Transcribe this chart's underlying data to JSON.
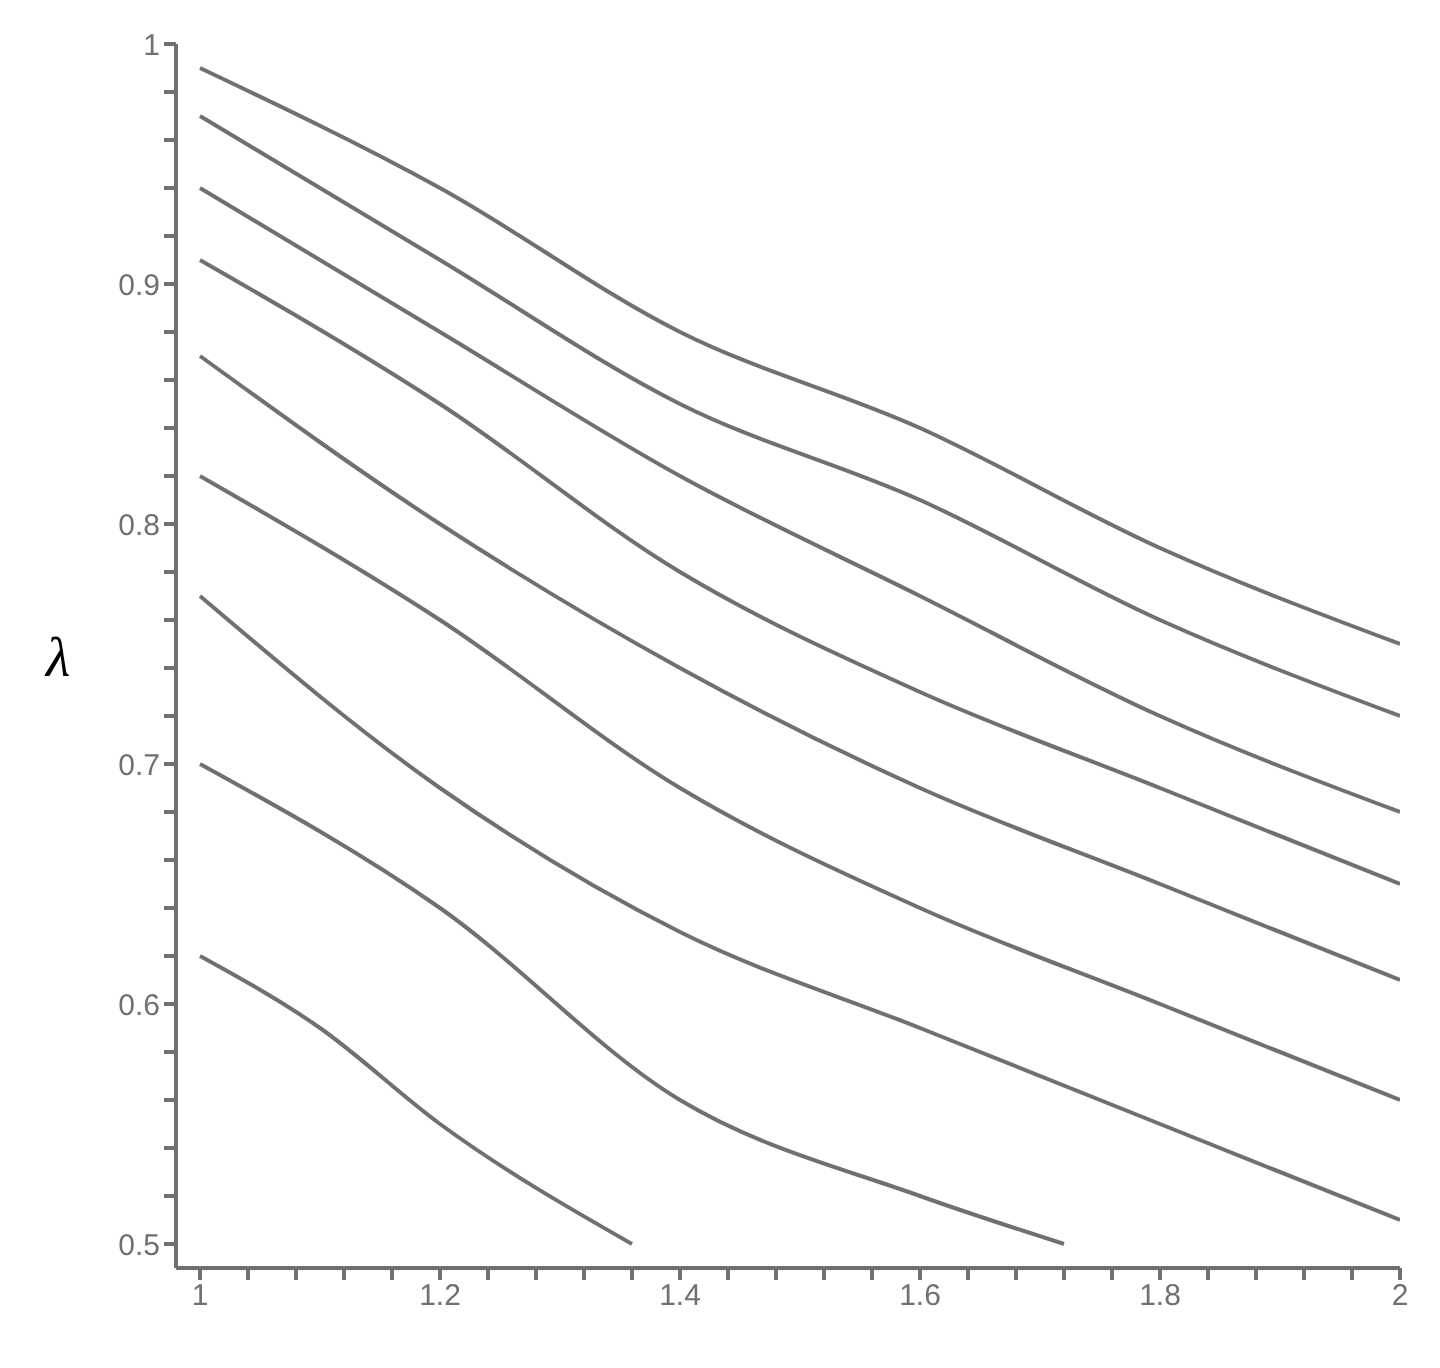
{
  "chart_data": {
    "type": "line",
    "ylabel": "λ",
    "marker": "none",
    "line_style": "solid",
    "xlim": [
      0.98,
      2
    ],
    "ylim": [
      0.49,
      1
    ],
    "xticks": [
      1,
      {
        "value": 1.04,
        "label": null
      },
      {
        "value": 1.08,
        "label": null
      },
      {
        "value": 1.12,
        "label": null
      },
      {
        "value": 1.16,
        "label": null
      },
      1.2,
      {
        "value": 1.24,
        "label": null
      },
      {
        "value": 1.28,
        "label": null
      },
      {
        "value": 1.32,
        "label": null
      },
      {
        "value": 1.36,
        "label": null
      },
      1.4,
      {
        "value": 1.44,
        "label": null
      },
      {
        "value": 1.48,
        "label": null
      },
      {
        "value": 1.52,
        "label": null
      },
      {
        "value": 1.56,
        "label": null
      },
      1.6,
      {
        "value": 1.64,
        "label": null
      },
      {
        "value": 1.68,
        "label": null
      },
      {
        "value": 1.72,
        "label": null
      },
      {
        "value": 1.76,
        "label": null
      },
      1.8,
      {
        "value": 1.84,
        "label": null
      },
      {
        "value": 1.88,
        "label": null
      },
      {
        "value": 1.92,
        "label": null
      },
      {
        "value": 1.96,
        "label": null
      },
      2
    ],
    "yticks": [
      0.5,
      {
        "value": 0.52,
        "label": null
      },
      {
        "value": 0.54,
        "label": null
      },
      {
        "value": 0.56,
        "label": null
      },
      {
        "value": 0.58,
        "label": null
      },
      0.6,
      {
        "value": 0.62,
        "label": null
      },
      {
        "value": 0.64,
        "label": null
      },
      {
        "value": 0.66,
        "label": null
      },
      {
        "value": 0.68,
        "label": null
      },
      0.7,
      {
        "value": 0.72,
        "label": null
      },
      {
        "value": 0.74,
        "label": null
      },
      {
        "value": 0.76,
        "label": null
      },
      {
        "value": 0.78,
        "label": null
      },
      0.8,
      {
        "value": 0.82,
        "label": null
      },
      {
        "value": 0.84,
        "label": null
      },
      {
        "value": 0.86,
        "label": null
      },
      {
        "value": 0.88,
        "label": null
      },
      0.9,
      {
        "value": 0.92,
        "label": null
      },
      {
        "value": 0.94,
        "label": null
      },
      {
        "value": 0.96,
        "label": null
      },
      {
        "value": 0.98,
        "label": null
      },
      1
    ],
    "x": [
      1,
      1.2,
      1.4,
      1.6,
      1.8,
      2
    ],
    "series": [
      {
        "color": "#707070",
        "values": [
          0.99,
          0.94,
          0.88,
          0.84,
          0.79,
          0.75
        ]
      },
      {
        "color": "#707070",
        "values": [
          0.97,
          0.91,
          0.85,
          0.81,
          0.76,
          0.72
        ]
      },
      {
        "color": "#707070",
        "values": [
          0.94,
          0.88,
          0.82,
          0.77,
          0.72,
          0.68
        ]
      },
      {
        "color": "#707070",
        "values": [
          0.91,
          0.85,
          0.78,
          0.73,
          0.69,
          0.65
        ]
      },
      {
        "color": "#707070",
        "values": [
          0.87,
          0.8,
          0.74,
          0.69,
          0.65,
          0.61
        ]
      },
      {
        "color": "#707070",
        "values": [
          0.82,
          0.76,
          0.69,
          0.64,
          0.6,
          0.56
        ]
      },
      {
        "color": "#707070",
        "values": [
          0.77,
          0.69,
          0.63,
          0.59,
          0.55,
          0.51
        ]
      },
      {
        "color": "#707070",
        "x": [
          1,
          1.2,
          1.4,
          1.6,
          1.72
        ],
        "values": [
          0.7,
          0.64,
          0.56,
          0.52,
          0.5
        ]
      },
      {
        "color": "#707070",
        "x": [
          1,
          1.1,
          1.2,
          1.36
        ],
        "values": [
          0.62,
          0.59,
          0.55,
          0.5
        ]
      }
    ]
  }
}
